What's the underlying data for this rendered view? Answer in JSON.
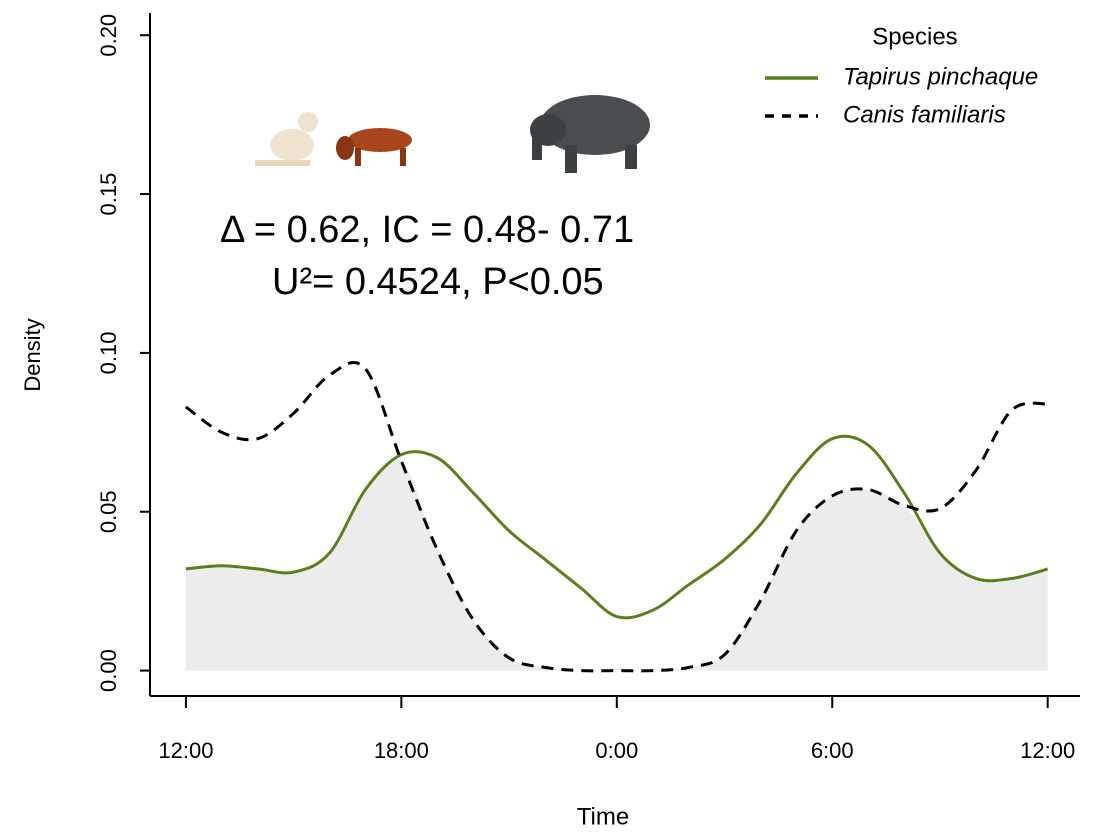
{
  "chart_data": {
    "type": "line",
    "annotations": [
      "Δ  = 0.62, IC = 0.48- 0.71",
      "U²= 0.4524, P<0.05"
    ],
    "xlabel": "Time",
    "ylabel": "Density",
    "legend_title": "Species",
    "legend": "top-right",
    "x": [
      12,
      13,
      14,
      15,
      16,
      17,
      18,
      19,
      20,
      21,
      22,
      23,
      24,
      25,
      26,
      27,
      28,
      29,
      30,
      31,
      32,
      33,
      34,
      35,
      36
    ],
    "series": [
      {
        "name": "Tapirus pinchaque",
        "color": "#5b7f1e",
        "dash": "solid",
        "values": [
          0.032,
          0.033,
          0.032,
          0.031,
          0.037,
          0.057,
          0.068,
          0.067,
          0.056,
          0.044,
          0.035,
          0.026,
          0.017,
          0.019,
          0.027,
          0.035,
          0.046,
          0.062,
          0.073,
          0.071,
          0.056,
          0.037,
          0.029,
          0.029,
          0.032
        ]
      },
      {
        "name": "Canis familiaris",
        "color": "#000000",
        "dash": "dashed",
        "values": [
          0.083,
          0.075,
          0.073,
          0.081,
          0.093,
          0.095,
          0.066,
          0.038,
          0.016,
          0.004,
          0.001,
          0,
          0,
          0,
          0.001,
          0.005,
          0.022,
          0.044,
          0.055,
          0.057,
          0.052,
          0.051,
          0.063,
          0.082,
          0.084
        ]
      }
    ],
    "xlim": [
      11,
      36.9
    ],
    "ylim": [
      -0.008,
      0.207
    ],
    "xticks": [
      {
        "value": 12,
        "label": "12:00"
      },
      {
        "value": 18,
        "label": "18:00"
      },
      {
        "value": 24,
        "label": "0:00"
      },
      {
        "value": 30,
        "label": "6:00"
      },
      {
        "value": 36,
        "label": "12:00"
      }
    ],
    "yticks": [
      {
        "value": 0,
        "label": "0.00"
      },
      {
        "value": 0.05,
        "label": "0.05"
      },
      {
        "value": 0.1,
        "label": "0.10"
      },
      {
        "value": 0.15,
        "label": "0.15"
      },
      {
        "value": 0.2,
        "label": "0.20"
      }
    ]
  }
}
